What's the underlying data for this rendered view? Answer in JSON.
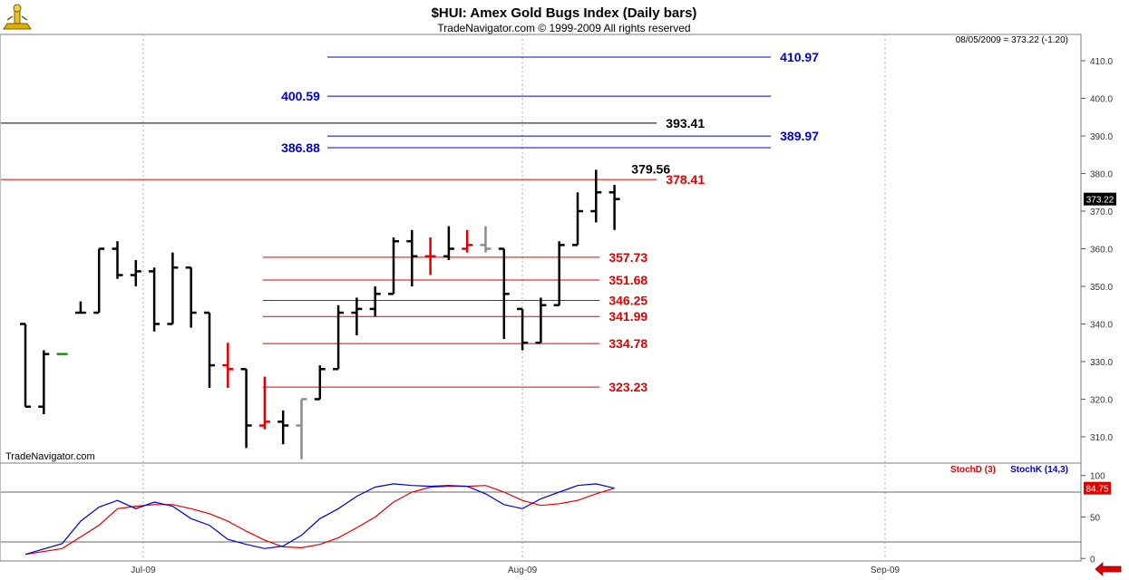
{
  "header": {
    "title": "$HUI:  Amex Gold Bugs Index  (Daily bars)",
    "subtitle": "TradeNavigator.com © 1999-2009 All rights reserved",
    "last_quote": "08/05/2009 = 373.22 (-1.20)",
    "watermark": "TradeNavigator.com"
  },
  "colors": {
    "background": "#ffffff",
    "bar_default": "#000000",
    "bar_down": "#e00000",
    "bar_gray": "#8c8c8c",
    "level_blue": "#0000cc",
    "level_red": "#e00000",
    "level_black": "#000000",
    "stoch_d": "#e00000",
    "stoch_k": "#0000cc"
  },
  "chart_data": {
    "type": "ohlc",
    "ylim": [
      303,
      417
    ],
    "y_ticks": [
      310,
      320,
      330,
      340,
      350,
      360,
      370,
      380,
      390,
      400,
      410
    ],
    "y_tick_labels": [
      "310.0",
      "320.0",
      "330.0",
      "340.0",
      "350.0",
      "360.0",
      "370.0",
      "380.0",
      "390.0",
      "400.0",
      "410.0"
    ],
    "last_price_label": "373.22",
    "last_price": 373.22,
    "x_tick_labels": [
      "Jul-09",
      "Aug-09",
      "Sep-09"
    ],
    "x_tick_bar_index": [
      6.4,
      27.0,
      46.7
    ],
    "bars_count_span": 50,
    "bars": [
      {
        "o": 340,
        "h": 340,
        "l": 318,
        "c": 318,
        "color": "black"
      },
      {
        "o": 318,
        "h": 333,
        "l": 316,
        "c": 332,
        "color": "black"
      },
      {
        "o": 332,
        "h": 332,
        "l": 332,
        "c": 332,
        "color": "green"
      },
      {
        "o": 343,
        "h": 346,
        "l": 343,
        "c": 343,
        "color": "black"
      },
      {
        "o": 343,
        "h": 360,
        "l": 343,
        "c": 360,
        "color": "black"
      },
      {
        "o": 360,
        "h": 362,
        "l": 352,
        "c": 353,
        "color": "black"
      },
      {
        "o": 353,
        "h": 357,
        "l": 350,
        "c": 354,
        "color": "black"
      },
      {
        "o": 354,
        "h": 355,
        "l": 338,
        "c": 340,
        "color": "black"
      },
      {
        "o": 340,
        "h": 359,
        "l": 340,
        "c": 355,
        "color": "black"
      },
      {
        "o": 355,
        "h": 355,
        "l": 339,
        "c": 343,
        "color": "black"
      },
      {
        "o": 343,
        "h": 343,
        "l": 323,
        "c": 329,
        "color": "black"
      },
      {
        "o": 329,
        "h": 335,
        "l": 323,
        "c": 328,
        "color": "red"
      },
      {
        "o": 328,
        "h": 328,
        "l": 307,
        "c": 313,
        "color": "black"
      },
      {
        "o": 313,
        "h": 326,
        "l": 312,
        "c": 314,
        "color": "red"
      },
      {
        "o": 314,
        "h": 317,
        "l": 308,
        "c": 313,
        "color": "black"
      },
      {
        "o": 313,
        "h": 320,
        "l": 304,
        "c": 320,
        "color": "gray"
      },
      {
        "o": 320,
        "h": 329,
        "l": 320,
        "c": 328,
        "color": "black"
      },
      {
        "o": 328,
        "h": 345,
        "l": 328,
        "c": 343,
        "color": "black"
      },
      {
        "o": 343,
        "h": 347,
        "l": 337,
        "c": 344,
        "color": "black"
      },
      {
        "o": 344,
        "h": 350,
        "l": 342,
        "c": 348,
        "color": "black"
      },
      {
        "o": 348,
        "h": 363,
        "l": 348,
        "c": 362,
        "color": "black"
      },
      {
        "o": 362,
        "h": 365,
        "l": 350,
        "c": 358,
        "color": "black"
      },
      {
        "o": 358,
        "h": 363,
        "l": 353,
        "c": 358,
        "color": "red"
      },
      {
        "o": 358,
        "h": 366,
        "l": 357,
        "c": 360,
        "color": "black"
      },
      {
        "o": 360,
        "h": 365,
        "l": 359,
        "c": 361,
        "color": "red"
      },
      {
        "o": 361,
        "h": 366,
        "l": 359,
        "c": 360,
        "color": "gray"
      },
      {
        "o": 360,
        "h": 360,
        "l": 336,
        "c": 348,
        "color": "black"
      },
      {
        "o": 344,
        "h": 344,
        "l": 333,
        "c": 335,
        "color": "black"
      },
      {
        "o": 335,
        "h": 347,
        "l": 335,
        "c": 345,
        "color": "black"
      },
      {
        "o": 345,
        "h": 362,
        "l": 345,
        "c": 361,
        "color": "black"
      },
      {
        "o": 361,
        "h": 375,
        "l": 361,
        "c": 370,
        "color": "black"
      },
      {
        "o": 370,
        "h": 381,
        "l": 367,
        "c": 375,
        "color": "black"
      },
      {
        "o": 375,
        "h": 377,
        "l": 365,
        "c": 373.22,
        "color": "black"
      }
    ],
    "levels": [
      {
        "value": 410.97,
        "label": "410.97",
        "color": "blue",
        "x_from_bar": 16.4,
        "x_to_bar": 40.5,
        "label_side": "right"
      },
      {
        "value": 400.59,
        "label": "400.59",
        "color": "blue",
        "x_from_bar": 16.4,
        "x_to_bar": 40.5,
        "label_side": "left"
      },
      {
        "value": 393.41,
        "label": "393.41",
        "color": "black",
        "x_from_bar": -1.0,
        "x_to_bar": 34.3,
        "label_side": "end"
      },
      {
        "value": 389.97,
        "label": "389.97",
        "color": "blue",
        "x_from_bar": 16.4,
        "x_to_bar": 40.5,
        "label_side": "right"
      },
      {
        "value": 386.88,
        "label": "386.88",
        "color": "blue",
        "x_from_bar": 16.4,
        "x_to_bar": 40.5,
        "label_side": "left"
      },
      {
        "value": 379.56,
        "label": "379.56",
        "color": "black",
        "x_from_bar": 34.3,
        "x_to_bar": 34.3,
        "label_side": "above"
      },
      {
        "value": 378.41,
        "label": "378.41",
        "color": "red",
        "x_from_bar": -1.0,
        "x_to_bar": 34.3,
        "label_side": "end"
      },
      {
        "value": 357.73,
        "label": "357.73",
        "color": "red",
        "x_from_bar": 12.9,
        "x_to_bar": 31.2,
        "label_side": "end"
      },
      {
        "value": 351.68,
        "label": "351.68",
        "color": "red",
        "x_from_bar": 12.9,
        "x_to_bar": 31.2,
        "label_side": "end"
      },
      {
        "value": 346.25,
        "label": "346.25",
        "color": "red",
        "x_from_bar": 12.9,
        "x_to_bar": 31.2,
        "label_side": "end"
      },
      {
        "value": 341.99,
        "label": "341.99",
        "color": "red",
        "x_from_bar": 12.9,
        "x_to_bar": 31.2,
        "label_side": "end"
      },
      {
        "value": 334.78,
        "label": "334.78",
        "color": "red",
        "x_from_bar": 12.9,
        "x_to_bar": 31.2,
        "label_side": "end"
      },
      {
        "value": 323.23,
        "label": "323.23",
        "color": "red",
        "x_from_bar": 12.9,
        "x_to_bar": 31.2,
        "label_side": "end"
      }
    ],
    "stochastic": {
      "ylim": [
        -3,
        115
      ],
      "y_ticks": [
        0,
        50,
        100
      ],
      "y_tick_labels": [
        "0",
        "50",
        "100"
      ],
      "ref_lines": [
        80,
        20
      ],
      "last_value_label": "84.75",
      "last_value": 84.75,
      "legend": [
        {
          "name": "StochD (3)",
          "color": "red"
        },
        {
          "name": "StochK (14,3)",
          "color": "blue"
        }
      ],
      "series": [
        {
          "name": "StochD (3)",
          "color": "red",
          "x": [
            0,
            2,
            4,
            5,
            6,
            7,
            8,
            9,
            10,
            11,
            12,
            13,
            14,
            15,
            16,
            17,
            18,
            19,
            20,
            21,
            22,
            23,
            24,
            25,
            26,
            27,
            28,
            29,
            30,
            31,
            32
          ],
          "values": [
            5,
            12,
            40,
            60,
            63,
            65,
            65,
            60,
            54,
            45,
            33,
            22,
            14,
            13,
            17,
            25,
            37,
            50,
            68,
            80,
            86,
            87,
            87,
            88,
            80,
            70,
            64,
            66,
            70,
            78,
            84.75
          ]
        },
        {
          "name": "StochK (14,3)",
          "color": "blue",
          "x": [
            0,
            2,
            3,
            4,
            5,
            6,
            7,
            8,
            9,
            10,
            11,
            12,
            13,
            14,
            15,
            16,
            17,
            18,
            19,
            20,
            21,
            22,
            23,
            24,
            25,
            26,
            27,
            28,
            29,
            30,
            31,
            32
          ],
          "values": [
            5,
            18,
            45,
            62,
            70,
            60,
            68,
            63,
            48,
            40,
            23,
            17,
            12,
            15,
            28,
            48,
            60,
            75,
            86,
            90,
            88,
            87,
            88,
            87,
            78,
            65,
            60,
            72,
            80,
            88,
            90,
            84.75
          ]
        }
      ]
    }
  }
}
